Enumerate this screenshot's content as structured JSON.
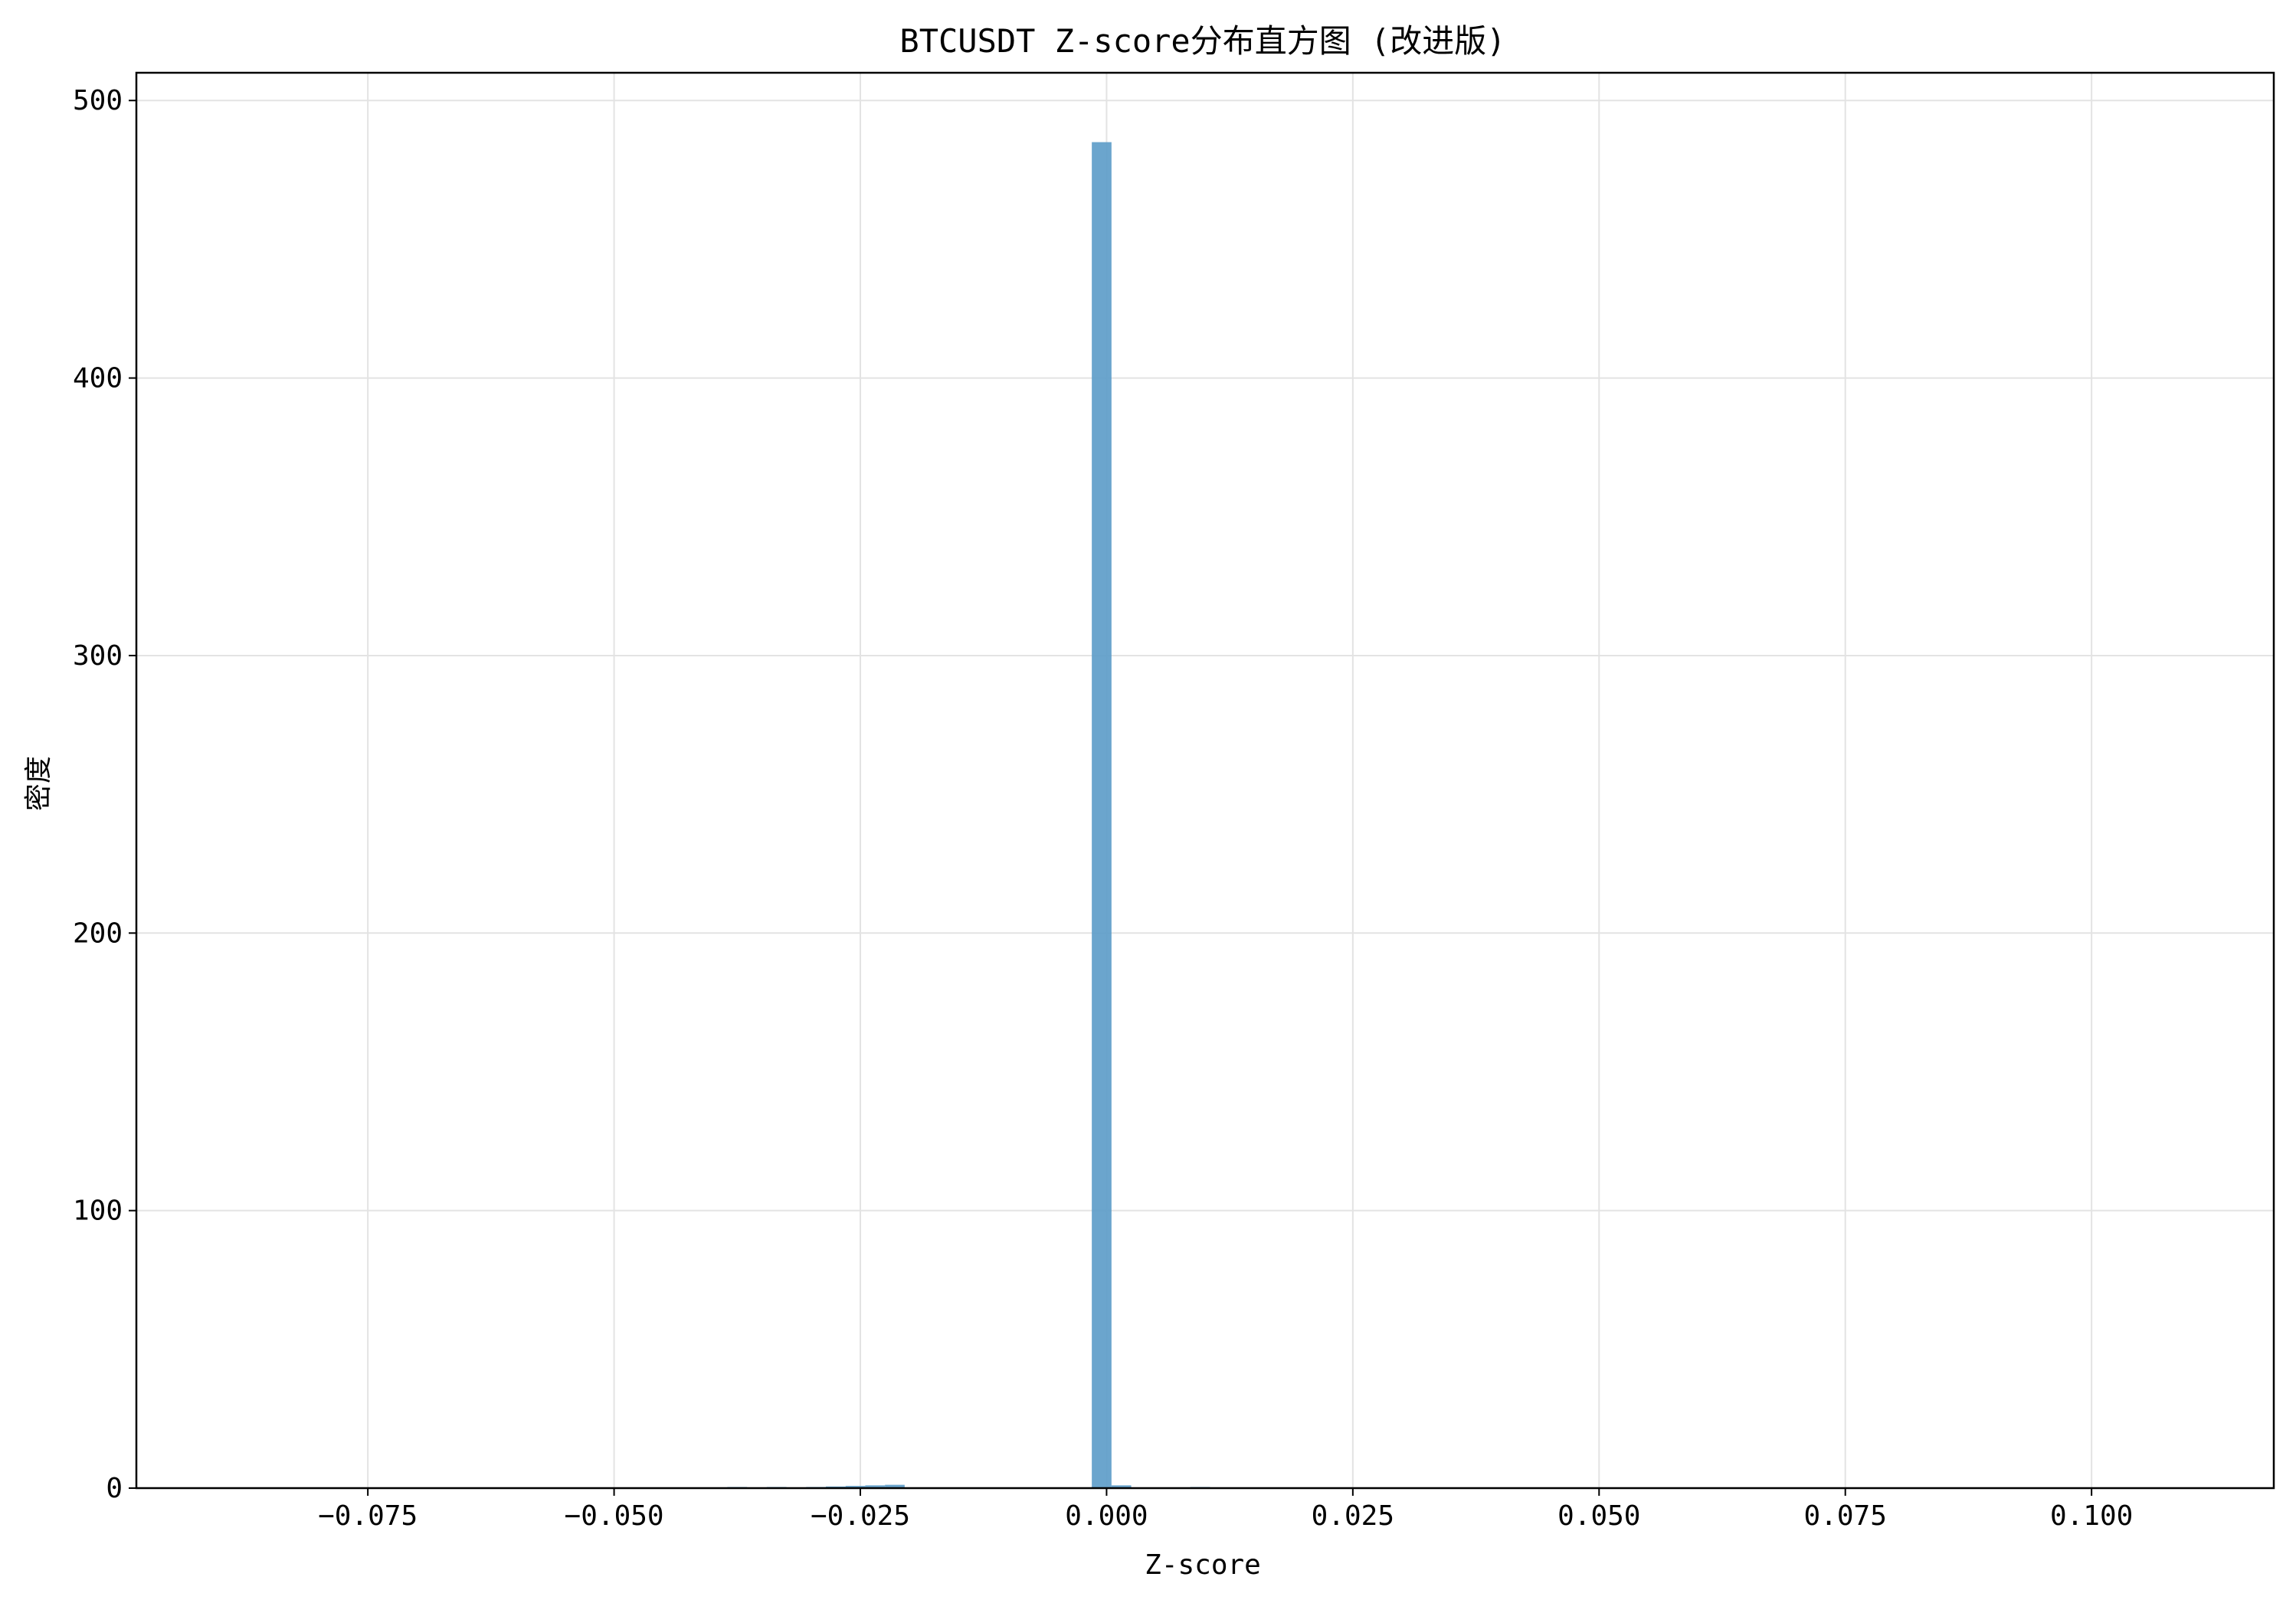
{
  "chart_data": {
    "type": "bar",
    "title": "BTCUSDT Z-score分布直方图 (改进版)",
    "xlabel": "Z-score",
    "ylabel": "密度",
    "xlim": [
      -0.0985,
      0.1185
    ],
    "ylim": [
      0,
      510
    ],
    "grid": true,
    "bar_color": "#5b9bc8",
    "bar_opacity": 0.9,
    "x_ticks": [
      {
        "value": -0.075,
        "label": "−0.075"
      },
      {
        "value": -0.05,
        "label": "−0.050"
      },
      {
        "value": -0.025,
        "label": "−0.025"
      },
      {
        "value": 0.0,
        "label": "0.000"
      },
      {
        "value": 0.025,
        "label": "0.025"
      },
      {
        "value": 0.05,
        "label": "0.050"
      },
      {
        "value": 0.075,
        "label": "0.075"
      },
      {
        "value": 0.1,
        "label": "0.100"
      }
    ],
    "y_ticks": [
      {
        "value": 0,
        "label": "0"
      },
      {
        "value": 100,
        "label": "100"
      },
      {
        "value": 200,
        "label": "200"
      },
      {
        "value": 300,
        "label": "300"
      },
      {
        "value": 400,
        "label": "400"
      },
      {
        "value": 500,
        "label": "500"
      }
    ],
    "bins": [
      {
        "x0": -0.0385,
        "x1": -0.0365,
        "density": 0.2
      },
      {
        "x0": -0.0345,
        "x1": -0.0325,
        "density": 0.3
      },
      {
        "x0": -0.0305,
        "x1": -0.0285,
        "density": 0.4
      },
      {
        "x0": -0.0285,
        "x1": -0.0265,
        "density": 0.6
      },
      {
        "x0": -0.0265,
        "x1": -0.0245,
        "density": 0.8
      },
      {
        "x0": -0.0245,
        "x1": -0.0225,
        "density": 1.0
      },
      {
        "x0": -0.0225,
        "x1": -0.0205,
        "density": 1.2
      },
      {
        "x0": -0.0015,
        "x1": 0.0005,
        "density": 485
      },
      {
        "x0": 0.0005,
        "x1": 0.0025,
        "density": 1.0
      },
      {
        "x0": 0.0085,
        "x1": 0.0105,
        "density": 0.3
      }
    ]
  }
}
